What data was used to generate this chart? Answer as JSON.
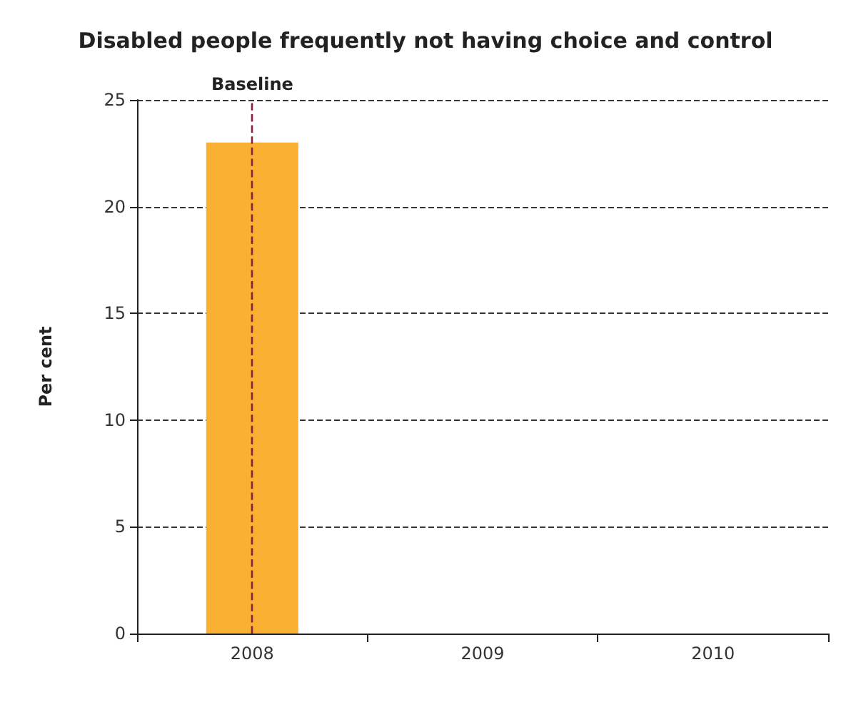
{
  "chart_data": {
    "type": "bar",
    "title": "Disabled people frequently not having choice and control",
    "ylabel": "Per cent",
    "categories": [
      "2008",
      "2009",
      "2010"
    ],
    "values": [
      23,
      null,
      null
    ],
    "color": "#f9b033",
    "ylim": [
      0,
      25
    ],
    "yticks": [
      0,
      5,
      10,
      15,
      20,
      25
    ],
    "grid": "y",
    "ref_lines": [
      {
        "axis": "x",
        "value": "2008",
        "label": "Baseline",
        "color": "#8b1f3f",
        "line_style": "dashed"
      }
    ]
  }
}
